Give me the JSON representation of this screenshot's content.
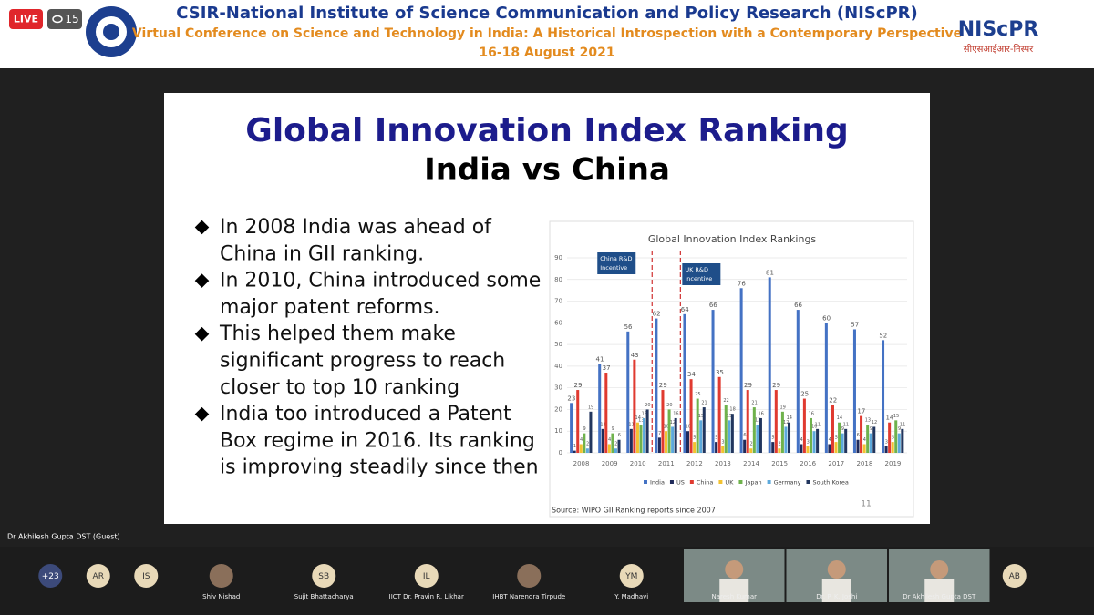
{
  "header": {
    "live": "LIVE",
    "viewers": 15,
    "org": "CSIR-National Institute of Science Communication and Policy Research (NIScPR)",
    "conference": "Virtual Conference on Science and Technology in India: A Historical Introspection with a Contemporary Perspective",
    "dates": "16-18 August 2021",
    "logo_text": "NIScPR",
    "logo_hindi": "सीएसआईआर-निस्पर"
  },
  "slide": {
    "title": "Global Innovation Index Ranking",
    "subtitle": "India vs China",
    "bullets": [
      [
        "In 2008 India was ahead of",
        "China in GII ranking."
      ],
      [
        "In 2010, China introduced some",
        "major patent reforms."
      ],
      [
        "This helped them make",
        "significant progress to reach",
        "closer to top 10 ranking"
      ],
      [
        "India too introduced a Patent",
        "Box regime in 2016. Its ranking",
        "is improving steadily since then"
      ]
    ],
    "page_number": 11,
    "source": "Source: WIPO GII Ranking reports since 2007",
    "chart": {
      "type": "bar",
      "title": "Global Innovation Index Rankings",
      "categories": [
        "2008",
        "2009",
        "2010",
        "2011",
        "2012",
        "2013",
        "2014",
        "2015",
        "2016",
        "2017",
        "2018",
        "2019"
      ],
      "series": [
        {
          "name": "India",
          "color": "#4472c4",
          "values": [
            23,
            41,
            56,
            62,
            64,
            66,
            76,
            81,
            66,
            60,
            57,
            52
          ]
        },
        {
          "name": "US",
          "color": "#1f2a5a",
          "values": [
            1,
            11,
            11,
            7,
            10,
            5,
            6,
            5,
            4,
            4,
            6,
            3
          ]
        },
        {
          "name": "China",
          "color": "#e03a30",
          "values": [
            29,
            37,
            43,
            29,
            34,
            35,
            29,
            29,
            25,
            22,
            17,
            14
          ]
        },
        {
          "name": "UK",
          "color": "#f2c230",
          "values": [
            4,
            4,
            14,
            10,
            5,
            3,
            2,
            2,
            3,
            5,
            4,
            5
          ]
        },
        {
          "name": "Japan",
          "color": "#6fb24c",
          "values": [
            9,
            9,
            13,
            20,
            25,
            22,
            21,
            19,
            16,
            14,
            13,
            15
          ]
        },
        {
          "name": "Germany",
          "color": "#5ca9dc",
          "values": [
            2,
            2,
            16,
            12,
            15,
            15,
            13,
            12,
            10,
            9,
            9,
            9
          ]
        },
        {
          "name": "South Korea",
          "color": "#22365e",
          "values": [
            19,
            6,
            20,
            16,
            21,
            18,
            16,
            14,
            11,
            11,
            12,
            11
          ]
        }
      ],
      "ylim": [
        0,
        90
      ],
      "yticks": [
        0,
        10,
        20,
        30,
        40,
        50,
        60,
        70,
        80,
        90
      ],
      "annotations": [
        {
          "text": [
            "China R&D",
            "Incentive"
          ],
          "after": "2010"
        },
        {
          "text": [
            "UK R&D",
            "Incentive"
          ],
          "after": "2011"
        }
      ]
    }
  },
  "speaker_label": "Dr Akhilesh Gupta DST (Guest)",
  "participants": [
    {
      "initials": "+23"
    },
    {
      "initials": "AR"
    },
    {
      "initials": "IS"
    },
    {
      "name": "Shiv Nishad"
    },
    {
      "initials": "SB",
      "name": "Sujit Bhattacharya"
    },
    {
      "initials": "IL",
      "name": "IICT Dr. Pravin R. Likhar"
    },
    {
      "name": "IHBT Narendra Tirpude"
    },
    {
      "initials": "YM",
      "name": "Y. Madhavi"
    },
    {
      "name": "Naresh Kumar",
      "video": true
    },
    {
      "name": "Dr. P. K. Joshi",
      "video": true
    },
    {
      "name": "Dr Akhilesh Gupta DST",
      "video": true
    },
    {
      "initials": "AB"
    }
  ]
}
